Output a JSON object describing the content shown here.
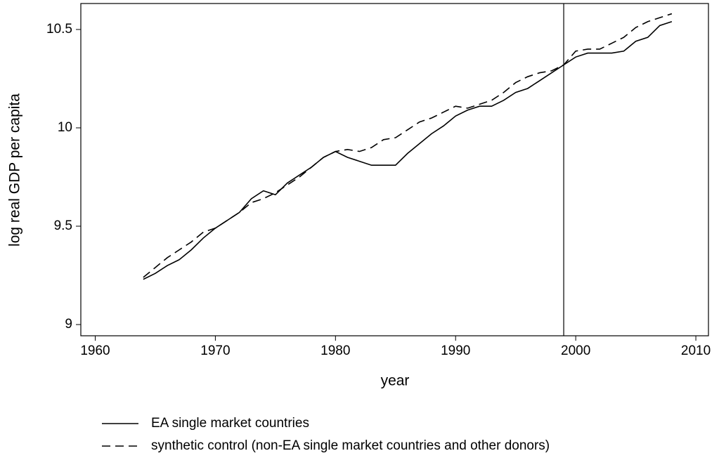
{
  "chart_data": {
    "type": "line",
    "x": [
      1964,
      1965,
      1966,
      1967,
      1968,
      1969,
      1970,
      1971,
      1972,
      1973,
      1974,
      1975,
      1976,
      1977,
      1978,
      1979,
      1980,
      1981,
      1982,
      1983,
      1984,
      1985,
      1986,
      1987,
      1988,
      1989,
      1990,
      1991,
      1992,
      1993,
      1994,
      1995,
      1996,
      1997,
      1998,
      1999,
      2000,
      2001,
      2002,
      2003,
      2004,
      2005,
      2006,
      2007,
      2008
    ],
    "series": [
      {
        "name": "EA single market countries",
        "color": "#000000",
        "dash": "solid",
        "values": [
          9.23,
          9.26,
          9.3,
          9.33,
          9.38,
          9.44,
          9.49,
          9.53,
          9.57,
          9.64,
          9.68,
          9.66,
          9.72,
          9.76,
          9.8,
          9.85,
          9.88,
          9.85,
          9.83,
          9.81,
          9.81,
          9.81,
          9.87,
          9.92,
          9.97,
          10.01,
          10.06,
          10.09,
          10.11,
          10.11,
          10.14,
          10.18,
          10.2,
          10.24,
          10.28,
          10.32,
          10.36,
          10.38,
          10.38,
          10.38,
          10.39,
          10.44,
          10.46,
          10.52,
          10.54
        ]
      },
      {
        "name": "synthetic control (non-EA single market countries and other donors)",
        "color": "#000000",
        "dash": "dashed",
        "values": [
          9.24,
          9.29,
          9.34,
          9.38,
          9.42,
          9.47,
          9.49,
          9.53,
          9.57,
          9.62,
          9.64,
          9.67,
          9.71,
          9.75,
          9.8,
          9.85,
          9.88,
          9.89,
          9.88,
          9.9,
          9.94,
          9.95,
          9.99,
          10.03,
          10.05,
          10.08,
          10.11,
          10.1,
          10.12,
          10.14,
          10.18,
          10.23,
          10.26,
          10.28,
          10.29,
          10.32,
          10.39,
          10.4,
          10.4,
          10.43,
          10.46,
          10.51,
          10.54,
          10.56,
          10.58
        ]
      }
    ],
    "vline": 1999,
    "xlabel": "year",
    "ylabel": "log real GDP per capita",
    "xlim": [
      1958.8,
      2011.05
    ],
    "ylim": [
      8.943,
      10.632
    ],
    "xticks": [
      1960,
      1970,
      1980,
      1990,
      2000,
      2010
    ],
    "yticks": [
      9,
      9.5,
      10,
      10.5
    ],
    "grid": false,
    "legend": "bottom"
  }
}
